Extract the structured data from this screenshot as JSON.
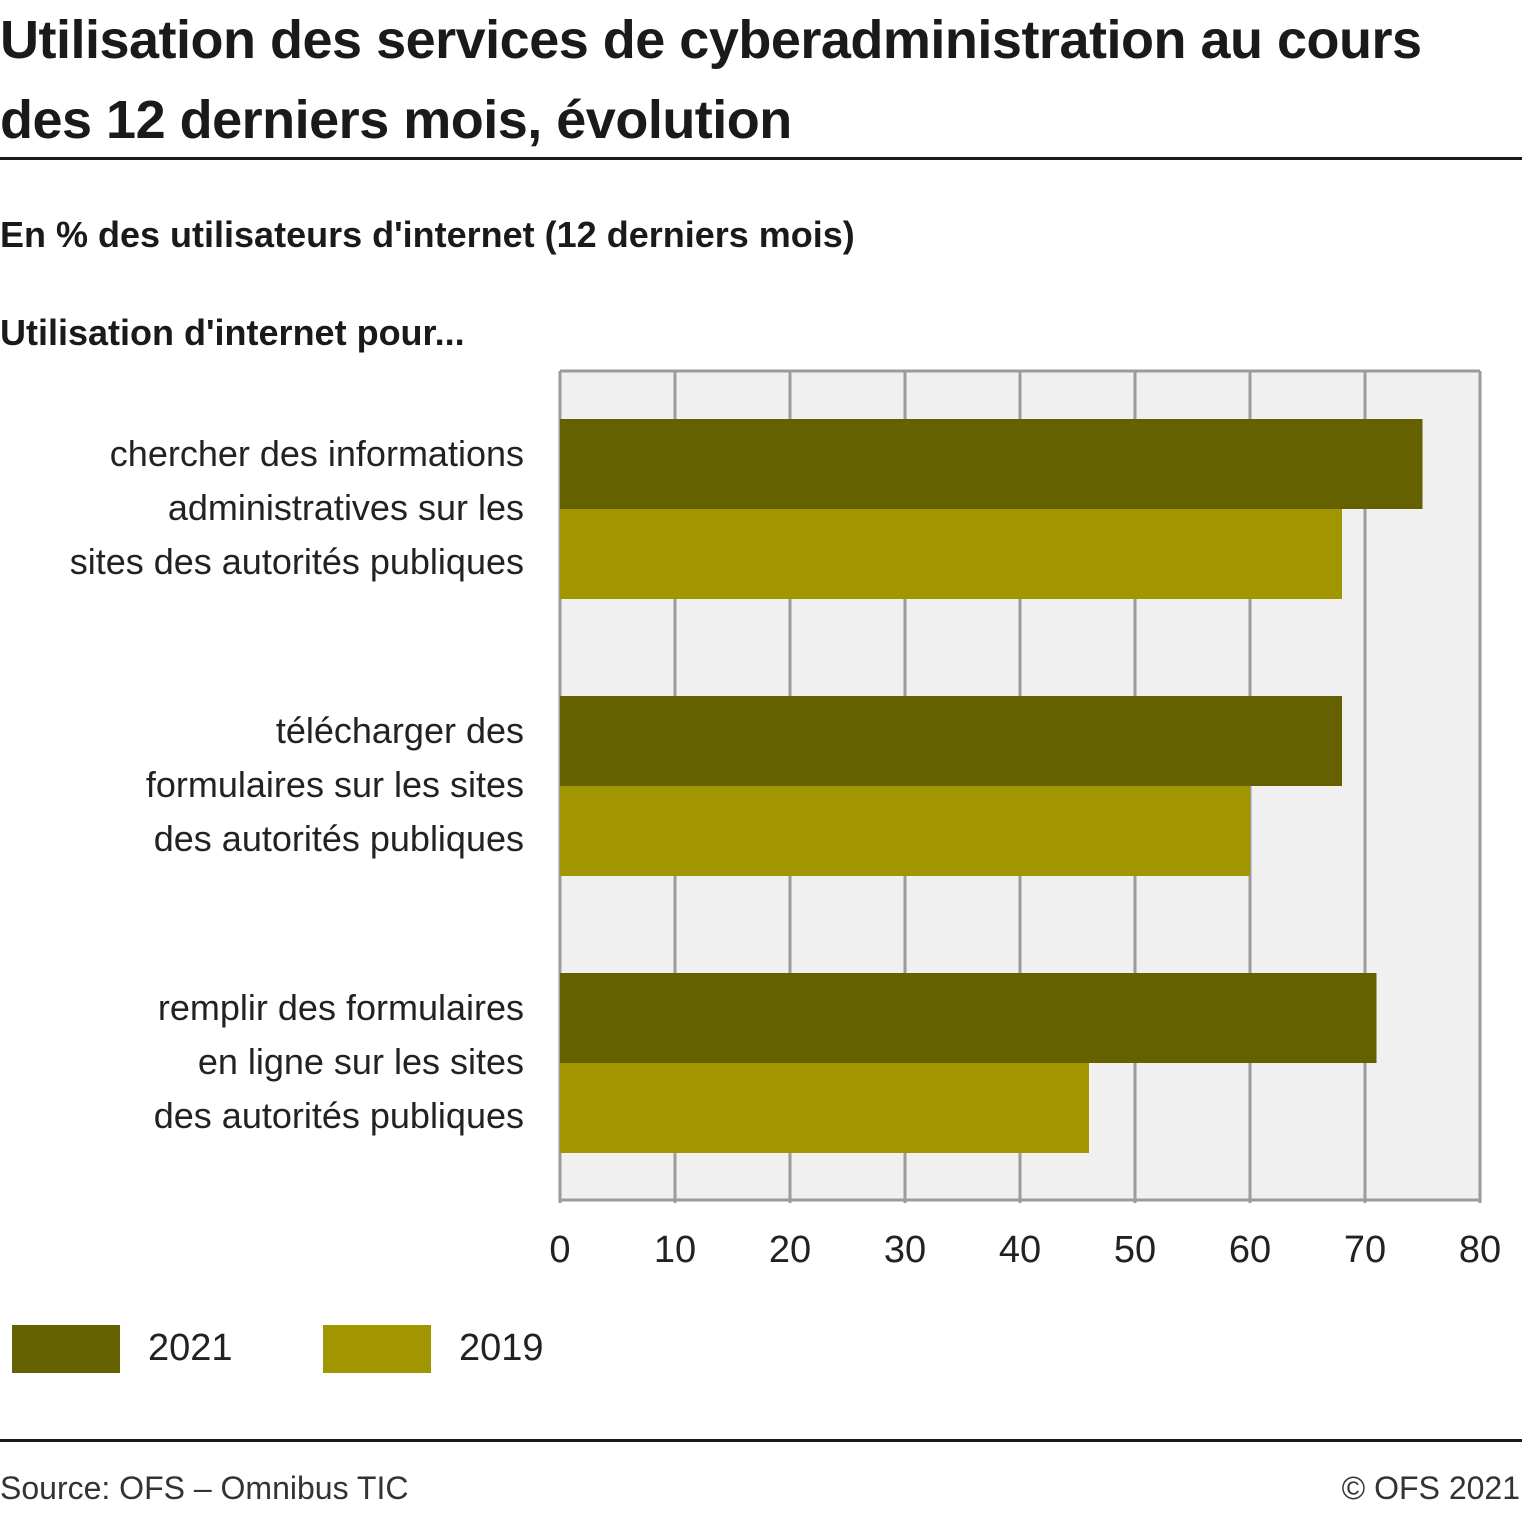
{
  "title": "Utilisation des services de cyberadministration au cours des 12 derniers mois, évolution",
  "subtitle": "En % des utilisateurs d'internet (12 derniers mois)",
  "axis_caption": "Utilisation d'internet pour...",
  "footer": {
    "source": "Source: OFS – Omnibus TIC",
    "copyright": "© OFS 2021"
  },
  "chart_data": {
    "type": "bar",
    "orientation": "horizontal",
    "title": "Utilisation des services de cyberadministration au cours des 12 derniers mois, évolution",
    "subtitle": "En % des utilisateurs d'internet (12 derniers mois)",
    "categories": [
      "chercher des informations administratives sur les sites des autorités publiques",
      "télécharger des formulaires sur les sites des autorités publiques",
      "remplir des formulaires en ligne sur les sites des autorités publiques"
    ],
    "category_lines": [
      [
        "chercher des informations",
        "administratives sur les",
        "sites des autorités publiques"
      ],
      [
        "télécharger des",
        "formulaires sur les sites",
        "des autorités publiques"
      ],
      [
        "remplir des formulaires",
        "en ligne sur les sites",
        "des autorités publiques"
      ]
    ],
    "series": [
      {
        "name": "2021",
        "color": "#666100",
        "values": [
          75,
          68,
          71
        ]
      },
      {
        "name": "2019",
        "color": "#a19600",
        "values": [
          68,
          60,
          46
        ]
      }
    ],
    "xlim": [
      0,
      80
    ],
    "ticks": [
      0,
      10,
      20,
      30,
      40,
      50,
      60,
      70,
      80
    ],
    "grid": true,
    "legend": "bottom-left",
    "plot_background": "#f0f0f0",
    "grid_color": "#9b9b9b"
  }
}
